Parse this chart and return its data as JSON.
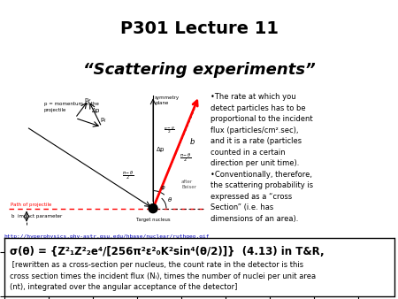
{
  "title_line1": "P301 Lecture 11",
  "title_line2": "“Scattering experiments”",
  "title_bg_color": "#cde8ed",
  "slide_bg_color": "#ffffff",
  "bullet_text": "•The rate at which you\ndetect particles has to be\nproportional to the incident\nflux (particles/cm².sec),\nand it is a rate (particles\ncounted in a certain\ndirection per unit time).\n•Conventionally, therefore,\nthe scattering probability is\nexpressed as a “cross\nSection” (i.e. has\ndimensions of an area).",
  "url_text": "http://hyperphysics.phy-astr.gsu.edu/hbase/nuclear/ruthgeo.gif",
  "url_color": "#0000bb",
  "url_bg": "#ffff00",
  "formula_line": "σ(θ) = {Z²₁Z²₂e⁴/[256π²ε²₀K²sin⁴(θ/2)]}  (4.13) in T&R,",
  "footnote_text": " [rewritten as a cross-section per nucleus, the count rate in the detector is this\ncross section times the incident flux (Nᵢ), times the number of nuclei per unit area\n(nt), integrated over the angular acceptance of the detector]"
}
